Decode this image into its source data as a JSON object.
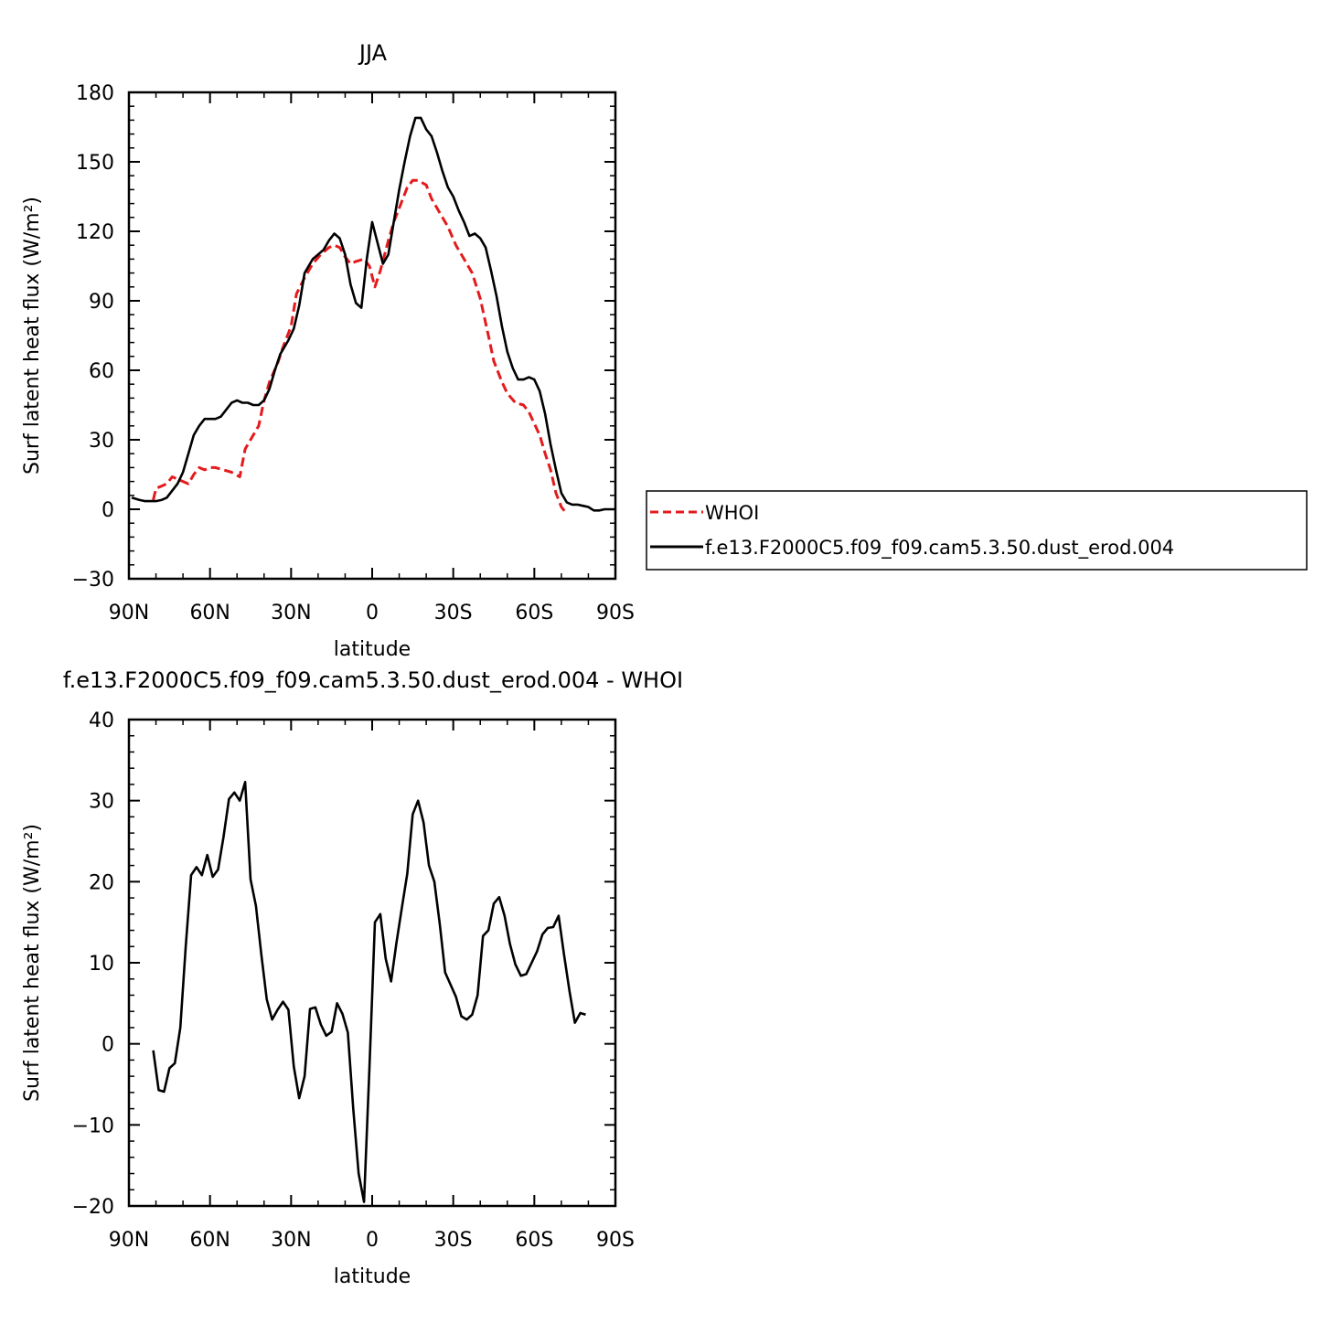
{
  "chart_data": [
    {
      "type": "line",
      "title": "JJA",
      "xlabel": "latitude",
      "ylabel": "Surf latent heat flux (W/m²)",
      "xlim": [
        90,
        -90
      ],
      "ylim": [
        -30,
        180
      ],
      "xticks": [
        {
          "value": 90,
          "label": "90N"
        },
        {
          "value": 60,
          "label": "60N"
        },
        {
          "value": 30,
          "label": "30N"
        },
        {
          "value": 0,
          "label": "0"
        },
        {
          "value": -30,
          "label": "30S"
        },
        {
          "value": -60,
          "label": "60S"
        },
        {
          "value": -90,
          "label": "90S"
        }
      ],
      "yticks": [
        -30,
        0,
        30,
        60,
        90,
        120,
        150,
        180
      ],
      "legend": "right",
      "series": [
        {
          "name": "WHOI",
          "color": "#e41a1c",
          "dash": true,
          "points": [
            [
              81,
              4
            ],
            [
              80,
              9
            ],
            [
              78,
              10
            ],
            [
              76,
              11
            ],
            [
              74,
              14
            ],
            [
              72,
              13
            ],
            [
              70,
              12
            ],
            [
              68,
              11
            ],
            [
              66,
              15
            ],
            [
              64,
              18
            ],
            [
              62,
              17
            ],
            [
              60,
              18
            ],
            [
              58,
              18
            ],
            [
              55,
              17
            ],
            [
              52,
              16
            ],
            [
              49,
              14
            ],
            [
              47,
              26
            ],
            [
              45,
              30
            ],
            [
              42,
              36
            ],
            [
              40,
              47
            ],
            [
              38,
              55
            ],
            [
              35,
              63
            ],
            [
              33,
              70
            ],
            [
              30,
              79
            ],
            [
              28,
              93
            ],
            [
              25,
              100
            ],
            [
              22,
              106
            ],
            [
              19,
              110
            ],
            [
              16,
              113
            ],
            [
              14,
              114
            ],
            [
              12,
              113
            ],
            [
              10,
              109
            ],
            [
              8,
              106
            ],
            [
              6,
              107
            ],
            [
              3,
              108
            ],
            [
              1,
              105
            ],
            [
              -1,
              96
            ],
            [
              -3,
              103
            ],
            [
              -6,
              116
            ],
            [
              -8,
              124
            ],
            [
              -11,
              133
            ],
            [
              -13,
              139
            ],
            [
              -15,
              142
            ],
            [
              -17,
              142
            ],
            [
              -20,
              140
            ],
            [
              -22,
              134
            ],
            [
              -25,
              128
            ],
            [
              -28,
              122
            ],
            [
              -31,
              114
            ],
            [
              -34,
              108
            ],
            [
              -37,
              102
            ],
            [
              -40,
              91
            ],
            [
              -43,
              75
            ],
            [
              -45,
              64
            ],
            [
              -48,
              55
            ],
            [
              -50,
              50
            ],
            [
              -53,
              46
            ],
            [
              -56,
              45
            ],
            [
              -58,
              42
            ],
            [
              -60,
              37
            ],
            [
              -62,
              32
            ],
            [
              -64,
              24
            ],
            [
              -66,
              17
            ],
            [
              -68,
              7
            ],
            [
              -70,
              1
            ],
            [
              -72,
              -2
            ]
          ]
        },
        {
          "name": "f.e13.F2000C5.f09_f09.cam5.3.50.dust_erod.004",
          "color": "#000000",
          "dash": false,
          "points": [
            [
              89,
              5
            ],
            [
              86,
              4
            ],
            [
              84,
              3.5
            ],
            [
              82,
              3.5
            ],
            [
              80,
              3.5
            ],
            [
              78,
              4
            ],
            [
              76,
              5
            ],
            [
              74,
              8
            ],
            [
              72,
              11
            ],
            [
              70,
              16
            ],
            [
              68,
              24
            ],
            [
              66,
              32
            ],
            [
              64,
              36
            ],
            [
              62,
              39
            ],
            [
              60,
              39
            ],
            [
              58,
              39
            ],
            [
              56,
              40
            ],
            [
              54,
              43
            ],
            [
              52,
              46
            ],
            [
              50,
              47
            ],
            [
              48,
              46
            ],
            [
              46,
              46
            ],
            [
              44,
              45
            ],
            [
              42,
              45
            ],
            [
              40,
              47
            ],
            [
              38,
              52
            ],
            [
              36,
              60
            ],
            [
              34,
              67
            ],
            [
              31,
              73
            ],
            [
              29,
              78
            ],
            [
              27,
              88
            ],
            [
              25,
              102
            ],
            [
              22,
              108
            ],
            [
              20,
              110
            ],
            [
              18,
              112
            ],
            [
              16,
              116
            ],
            [
              14,
              119
            ],
            [
              12,
              117
            ],
            [
              10,
              110
            ],
            [
              8,
              97
            ],
            [
              6,
              89
            ],
            [
              4,
              87
            ],
            [
              2,
              108
            ],
            [
              0,
              124
            ],
            [
              -2,
              115
            ],
            [
              -4,
              106
            ],
            [
              -6,
              110
            ],
            [
              -8,
              124
            ],
            [
              -10,
              138
            ],
            [
              -12,
              150
            ],
            [
              -14,
              161
            ],
            [
              -16,
              169
            ],
            [
              -18,
              169
            ],
            [
              -20,
              164
            ],
            [
              -22,
              161
            ],
            [
              -24,
              154
            ],
            [
              -26,
              146
            ],
            [
              -28,
              139
            ],
            [
              -30,
              135
            ],
            [
              -32,
              129
            ],
            [
              -34,
              124
            ],
            [
              -36,
              118
            ],
            [
              -38,
              119
            ],
            [
              -40,
              117
            ],
            [
              -42,
              113
            ],
            [
              -44,
              103
            ],
            [
              -46,
              92
            ],
            [
              -48,
              79
            ],
            [
              -50,
              68
            ],
            [
              -52,
              61
            ],
            [
              -54,
              56
            ],
            [
              -56,
              56
            ],
            [
              -58,
              57
            ],
            [
              -60,
              56
            ],
            [
              -62,
              51
            ],
            [
              -64,
              41
            ],
            [
              -66,
              28
            ],
            [
              -68,
              17
            ],
            [
              -70,
              7
            ],
            [
              -72,
              3
            ],
            [
              -74,
              2
            ],
            [
              -76,
              2
            ],
            [
              -78,
              1.5
            ],
            [
              -80,
              1
            ],
            [
              -82,
              -0.5
            ],
            [
              -84,
              -0.5
            ],
            [
              -86,
              0
            ],
            [
              -88,
              0
            ],
            [
              -90,
              0
            ]
          ]
        }
      ]
    },
    {
      "type": "line",
      "title": "f.e13.F2000C5.f09_f09.cam5.3.50.dust_erod.004 - WHOI",
      "xlabel": "latitude",
      "ylabel": "Surf latent heat flux (W/m²)",
      "xlim": [
        90,
        -90
      ],
      "ylim": [
        -20,
        40
      ],
      "xticks": [
        {
          "value": 90,
          "label": "90N"
        },
        {
          "value": 60,
          "label": "60N"
        },
        {
          "value": 30,
          "label": "30N"
        },
        {
          "value": 0,
          "label": "0"
        },
        {
          "value": -30,
          "label": "30S"
        },
        {
          "value": -60,
          "label": "60S"
        },
        {
          "value": -90,
          "label": "90S"
        }
      ],
      "yticks": [
        -20,
        -10,
        0,
        10,
        20,
        30,
        40
      ],
      "series": [
        {
          "color": "#000000",
          "dash": false,
          "points": [
            [
              81,
              -0.8
            ],
            [
              79,
              -5.7
            ],
            [
              77,
              -5.9
            ],
            [
              75,
              -3
            ],
            [
              73,
              -2.4
            ],
            [
              71,
              2
            ],
            [
              69,
              12
            ],
            [
              67,
              20.8
            ],
            [
              65,
              21.8
            ],
            [
              63,
              20.8
            ],
            [
              61,
              23.3
            ],
            [
              59,
              20.6
            ],
            [
              57,
              21.5
            ],
            [
              55,
              25.5
            ],
            [
              53,
              30.2
            ],
            [
              51,
              31
            ],
            [
              49,
              30
            ],
            [
              47,
              32.3
            ],
            [
              45,
              20.3
            ],
            [
              43,
              17
            ],
            [
              41,
              11
            ],
            [
              39,
              5.5
            ],
            [
              37,
              3
            ],
            [
              35,
              4.2
            ],
            [
              33,
              5.2
            ],
            [
              31,
              4.2
            ],
            [
              29,
              -2.8
            ],
            [
              27,
              -6.7
            ],
            [
              25,
              -4
            ],
            [
              23,
              4.3
            ],
            [
              21,
              4.5
            ],
            [
              19,
              2.4
            ],
            [
              17,
              1
            ],
            [
              15,
              1.5
            ],
            [
              13,
              5
            ],
            [
              11,
              3.7
            ],
            [
              9,
              1.4
            ],
            [
              7,
              -8
            ],
            [
              5,
              -16
            ],
            [
              3,
              -19.5
            ],
            [
              1,
              -3
            ],
            [
              -1,
              15
            ],
            [
              -3,
              16
            ],
            [
              -5,
              10.5
            ],
            [
              -7,
              7.7
            ],
            [
              -9,
              12.5
            ],
            [
              -11,
              16.8
            ],
            [
              -13,
              21
            ],
            [
              -15,
              28.3
            ],
            [
              -17,
              30
            ],
            [
              -19,
              27.3
            ],
            [
              -21,
              22
            ],
            [
              -23,
              20
            ],
            [
              -25,
              14.8
            ],
            [
              -27,
              8.8
            ],
            [
              -29,
              7.3
            ],
            [
              -31,
              5.8
            ],
            [
              -33,
              3.4
            ],
            [
              -35,
              3
            ],
            [
              -37,
              3.6
            ],
            [
              -39,
              6
            ],
            [
              -41,
              13.3
            ],
            [
              -43,
              14
            ],
            [
              -45,
              17.3
            ],
            [
              -47,
              18.1
            ],
            [
              -49,
              15.8
            ],
            [
              -51,
              12.3
            ],
            [
              -53,
              9.8
            ],
            [
              -55,
              8.4
            ],
            [
              -57,
              8.6
            ],
            [
              -59,
              10
            ],
            [
              -61,
              11.4
            ],
            [
              -63,
              13.5
            ],
            [
              -65,
              14.3
            ],
            [
              -67,
              14.4
            ],
            [
              -69,
              15.8
            ],
            [
              -71,
              11
            ],
            [
              -73,
              6.5
            ],
            [
              -75,
              2.6
            ],
            [
              -77,
              3.8
            ],
            [
              -79,
              3.6
            ]
          ]
        }
      ]
    }
  ]
}
